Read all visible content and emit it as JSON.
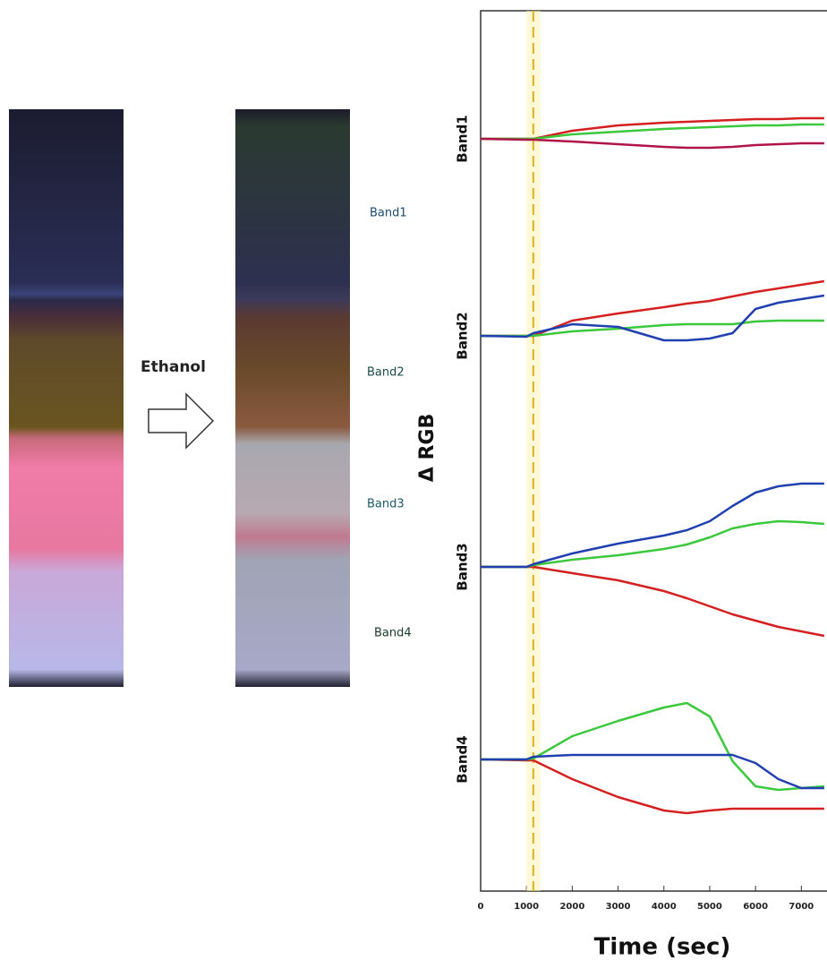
{
  "figure": {
    "arrow_label": "Ethanol",
    "band_labels": [
      "Band1",
      "Band2",
      "Band3",
      "Band4"
    ]
  },
  "chart_data": {
    "type": "line",
    "xlabel": "Time (sec)",
    "ylabel": "Δ RGB",
    "xlim": [
      0,
      7560
    ],
    "xticks": [
      0,
      1000,
      2000,
      3000,
      4000,
      5000,
      6000,
      7000
    ],
    "ylim": [
      0,
      983
    ],
    "vline": 1150,
    "x": [
      0,
      1000,
      1150,
      2000,
      3000,
      4000,
      4500,
      5000,
      5500,
      6000,
      6500,
      7000,
      7500
    ],
    "bands": [
      {
        "label": "Band1",
        "series": [
          {
            "color": "#d42020",
            "values": [
              840,
              840,
              840,
              849,
              855,
              858,
              859,
              860,
              861,
              862,
              862,
              863,
              863
            ]
          },
          {
            "color": "#3cc83c",
            "values": [
              840,
              840,
              840,
              845,
              848,
              851,
              852,
              853,
              854,
              855,
              855,
              856,
              856
            ]
          },
          {
            "color": "#b0154a",
            "values": [
              840,
              839,
              839,
              837,
              834,
              831,
              830,
              830,
              831,
              833,
              834,
              835,
              835
            ]
          }
        ]
      },
      {
        "label": "Band2",
        "series": [
          {
            "color": "#d42020",
            "values": [
              620,
              620,
              620,
              637,
              645,
              652,
              656,
              659,
              664,
              669,
              673,
              677,
              681
            ]
          },
          {
            "color": "#3cc83c",
            "values": [
              620,
              620,
              620,
              625,
              628,
              632,
              633,
              633,
              633,
              636,
              637,
              637,
              637
            ]
          },
          {
            "color": "#2040b0",
            "values": [
              620,
              619,
              623,
              633,
              630,
              615,
              615,
              617,
              623,
              650,
              657,
              661,
              665
            ]
          }
        ]
      },
      {
        "label": "Band3",
        "series": [
          {
            "color": "#d42020",
            "values": [
              362,
              362,
              362,
              355,
              347,
              335,
              327,
              318,
              309,
              302,
              295,
              290,
              285
            ]
          },
          {
            "color": "#3cc83c",
            "values": [
              362,
              362,
              364,
              370,
              375,
              382,
              387,
              395,
              405,
              410,
              413,
              412,
              410
            ]
          },
          {
            "color": "#2040b0",
            "values": [
              362,
              362,
              365,
              377,
              388,
              397,
              403,
              413,
              430,
              445,
              452,
              455,
              455
            ]
          }
        ]
      },
      {
        "label": "Band4",
        "series": [
          {
            "color": "#d42020",
            "values": [
              147,
              146,
              146,
              125,
              105,
              90,
              87,
              90,
              92,
              92,
              92,
              92,
              92
            ]
          },
          {
            "color": "#3cc83c",
            "values": [
              147,
              147,
              148,
              173,
              190,
              205,
              210,
              195,
              145,
              117,
              113,
              115,
              117
            ]
          },
          {
            "color": "#2040b0",
            "values": [
              147,
              147,
              150,
              152,
              152,
              152,
              152,
              152,
              152,
              143,
              125,
              115,
              115
            ]
          }
        ]
      }
    ]
  }
}
